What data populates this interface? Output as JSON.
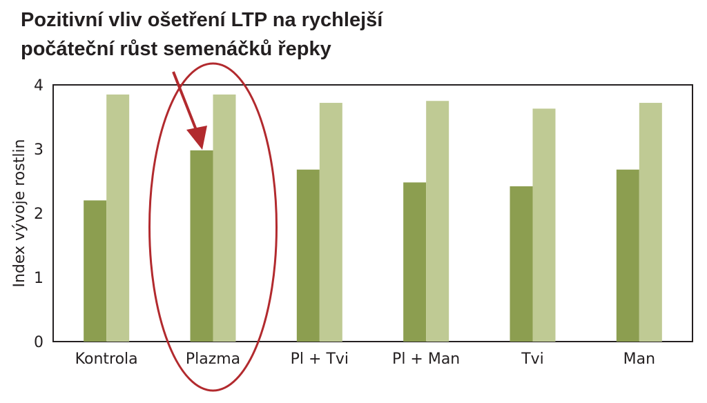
{
  "chart_data": {
    "type": "bar",
    "title_lines": [
      "Pozitivní vliv ošetření LTP na rychlejší",
      "počáteční růst semenáčků řepky"
    ],
    "ylabel": "Index vývoje rostlin",
    "xlabel": "",
    "categories": [
      "Kontrola",
      "Plazma",
      "Pl + Tvi",
      "Pl + Man",
      "Tvi",
      "Man"
    ],
    "series": [
      {
        "values": [
          2.2,
          2.98,
          2.68,
          2.48,
          2.42,
          2.68
        ],
        "color": "#8c9e50"
      },
      {
        "values": [
          3.85,
          3.85,
          3.72,
          3.75,
          3.63,
          3.72
        ],
        "color": "#bfca94"
      }
    ],
    "ylim": [
      0,
      4
    ],
    "yticks": [
      0,
      1,
      2,
      3,
      4
    ],
    "grid": false,
    "annotation": {
      "highlight_category": "Plazma",
      "color": "#b22a2e"
    }
  }
}
